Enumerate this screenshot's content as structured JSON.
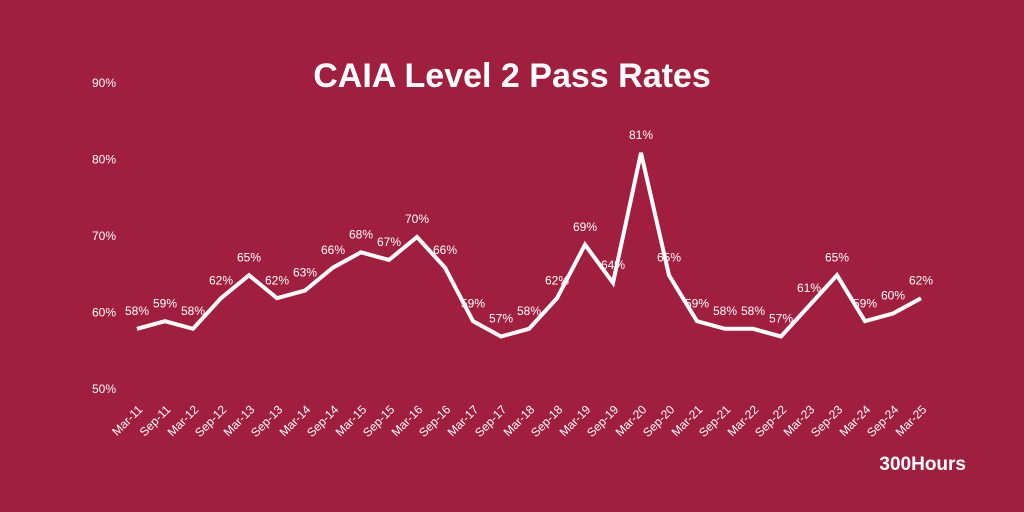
{
  "chart_data": {
    "type": "line",
    "title": "CAIA Level 2 Pass Rates",
    "brand": "300Hours",
    "categories": [
      "Mar-11",
      "Sep-11",
      "Mar-12",
      "Sep-12",
      "Mar-13",
      "Sep-13",
      "Mar-14",
      "Sep-14",
      "Mar-15",
      "Sep-15",
      "Mar-16",
      "Sep-16",
      "Mar-17",
      "Sep-17",
      "Mar-18",
      "Sep-18",
      "Mar-19",
      "Sep-19",
      "Mar-20",
      "Sep-20",
      "Mar-21",
      "Sep-21",
      "Mar-22",
      "Sep-22",
      "Mar-23",
      "Sep-23",
      "Mar-24",
      "Sep-24",
      "Mar-25"
    ],
    "values": [
      58,
      59,
      58,
      62,
      65,
      62,
      63,
      66,
      68,
      67,
      70,
      66,
      59,
      57,
      58,
      62,
      69,
      64,
      81,
      65,
      59,
      58,
      58,
      57,
      61,
      65,
      59,
      60,
      62
    ],
    "value_labels": [
      "58%",
      "59%",
      "58%",
      "62%",
      "65%",
      "62%",
      "63%",
      "66%",
      "68%",
      "67%",
      "70%",
      "66%",
      "59%",
      "57%",
      "58%",
      "62%",
      "69%",
      "64%",
      "81%",
      "65%",
      "59%",
      "58%",
      "58%",
      "57%",
      "61%",
      "65%",
      "59%",
      "60%",
      "62%"
    ],
    "color": "#ffffff",
    "ylim": [
      50,
      90
    ],
    "yticks": [
      {
        "value": 50,
        "label": "50%"
      },
      {
        "value": 60,
        "label": "60%"
      },
      {
        "value": 70,
        "label": "70%"
      },
      {
        "value": 80,
        "label": "80%"
      },
      {
        "value": 90,
        "label": "90%"
      }
    ],
    "grid": false
  }
}
